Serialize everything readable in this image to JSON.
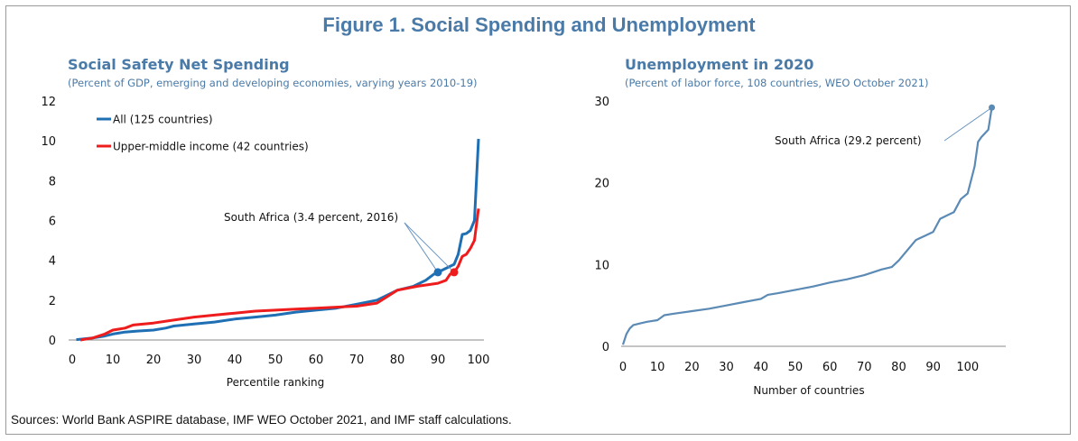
{
  "figure": {
    "title": "Figure 1. Social Spending and Unemployment",
    "sources": "Sources: World Bank ASPIRE database, IMF WEO October 2021, and IMF staff calculations."
  },
  "left_panel": {
    "title": "Social Safety Net Spending",
    "subtitle": "(Percent of GDP, emerging and developing economies, varying years 2010-19)"
  },
  "right_panel": {
    "title": "Unemployment in 2020",
    "subtitle": "(Percent of labor force, 108 countries, WEO October 2021)"
  },
  "colors": {
    "blue": "#1f6fb4",
    "red": "#ee1c1c",
    "steel": "#5b8ab5",
    "title": "#4a7aa8"
  },
  "chart_data": [
    {
      "type": "line",
      "title": "Social Safety Net Spending",
      "xlabel": "Percentile ranking",
      "ylabel": "",
      "xlim": [
        0,
        100
      ],
      "ylim": [
        0,
        12
      ],
      "xticks": [
        0,
        10,
        20,
        30,
        40,
        50,
        60,
        70,
        80,
        90,
        100
      ],
      "yticks": [
        0,
        2,
        4,
        6,
        8,
        10,
        12
      ],
      "legend_position": "top-left",
      "series": [
        {
          "name": "All (125 countries)",
          "color": "#1f6fb4",
          "x": [
            1,
            5,
            8,
            10,
            13,
            16,
            20,
            23,
            25,
            30,
            35,
            40,
            45,
            50,
            55,
            60,
            65,
            70,
            75,
            80,
            84,
            87,
            89,
            90,
            92,
            94,
            95,
            96,
            97,
            98,
            99,
            100
          ],
          "y": [
            0.02,
            0.1,
            0.2,
            0.3,
            0.4,
            0.45,
            0.5,
            0.6,
            0.7,
            0.8,
            0.9,
            1.05,
            1.15,
            1.25,
            1.4,
            1.5,
            1.6,
            1.8,
            2.0,
            2.5,
            2.7,
            3.0,
            3.3,
            3.4,
            3.6,
            3.8,
            4.3,
            5.3,
            5.35,
            5.5,
            6.0,
            10.1
          ]
        },
        {
          "name": "Upper-middle income (42 countries)",
          "color": "#ee1c1c",
          "x": [
            2,
            5,
            8,
            10,
            13,
            15,
            20,
            25,
            30,
            35,
            40,
            45,
            50,
            55,
            60,
            65,
            70,
            75,
            80,
            85,
            90,
            92,
            93,
            94,
            95,
            96,
            97,
            98,
            99,
            100
          ],
          "y": [
            0.0,
            0.1,
            0.3,
            0.5,
            0.6,
            0.75,
            0.85,
            1.0,
            1.15,
            1.25,
            1.35,
            1.45,
            1.5,
            1.55,
            1.6,
            1.65,
            1.7,
            1.85,
            2.5,
            2.7,
            2.85,
            3.0,
            3.3,
            3.4,
            3.7,
            4.2,
            4.3,
            4.6,
            5.0,
            6.6
          ]
        }
      ],
      "annotations": [
        {
          "text": "South Africa (3.4 percent, 2016)",
          "points": [
            {
              "series": "All (125 countries)",
              "x": 90,
              "y": 3.4
            },
            {
              "series": "Upper-middle income (42 countries)",
              "x": 94,
              "y": 3.4
            }
          ]
        }
      ]
    },
    {
      "type": "line",
      "title": "Unemployment in 2020",
      "xlabel": "Number of countries",
      "ylabel": "",
      "xlim": [
        0,
        110
      ],
      "ylim": [
        0,
        30
      ],
      "xticks": [
        0,
        10,
        20,
        30,
        40,
        50,
        60,
        70,
        80,
        90,
        100
      ],
      "yticks": [
        0,
        10,
        20,
        30
      ],
      "series": [
        {
          "name": "",
          "color": "#5b8ab5",
          "x": [
            0,
            1,
            2,
            3,
            5,
            7,
            10,
            12,
            15,
            20,
            25,
            30,
            35,
            40,
            42,
            45,
            50,
            55,
            60,
            65,
            70,
            75,
            78,
            80,
            82,
            85,
            88,
            90,
            92,
            94,
            96,
            98,
            100,
            102,
            103,
            104,
            106,
            107
          ],
          "y": [
            0.2,
            1.5,
            2.2,
            2.6,
            2.8,
            3.0,
            3.2,
            3.8,
            4.0,
            4.3,
            4.6,
            5.0,
            5.4,
            5.8,
            6.3,
            6.5,
            6.9,
            7.3,
            7.8,
            8.2,
            8.7,
            9.4,
            9.7,
            10.5,
            11.5,
            13.0,
            13.6,
            14.0,
            15.6,
            16.0,
            16.4,
            18.0,
            18.7,
            22.0,
            25.0,
            25.6,
            26.5,
            29.2
          ]
        }
      ],
      "annotations": [
        {
          "text": "South Africa (29.2 percent)",
          "points": [
            {
              "x": 107,
              "y": 29.2
            }
          ]
        }
      ]
    }
  ]
}
